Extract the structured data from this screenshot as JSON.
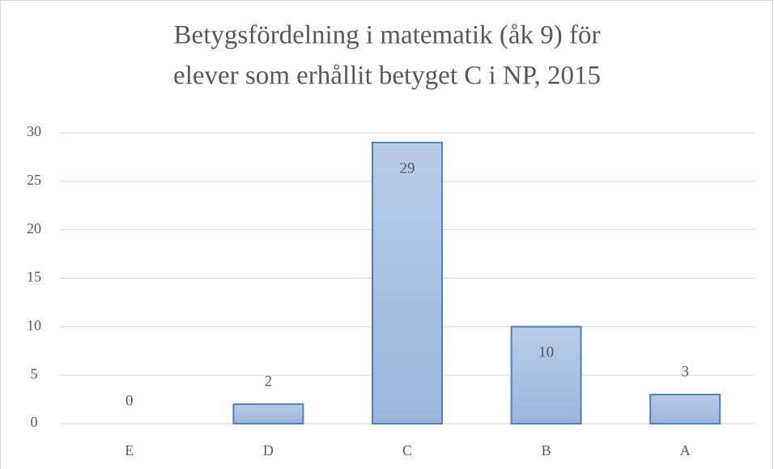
{
  "chart_data": {
    "type": "bar",
    "title": [
      "Betygsfördelning i matematik (åk 9) för",
      "elever som erhållit betyget C i NP, 2015"
    ],
    "categories": [
      "E",
      "D",
      "C",
      "B",
      "A"
    ],
    "values": [
      0,
      2,
      29,
      10,
      3
    ],
    "color": "#a7bfe0",
    "edge_color": "#4f81bd",
    "ylim": [
      0,
      30
    ],
    "yticks": [
      0,
      5,
      10,
      15,
      20,
      25,
      30
    ],
    "grid": true
  }
}
